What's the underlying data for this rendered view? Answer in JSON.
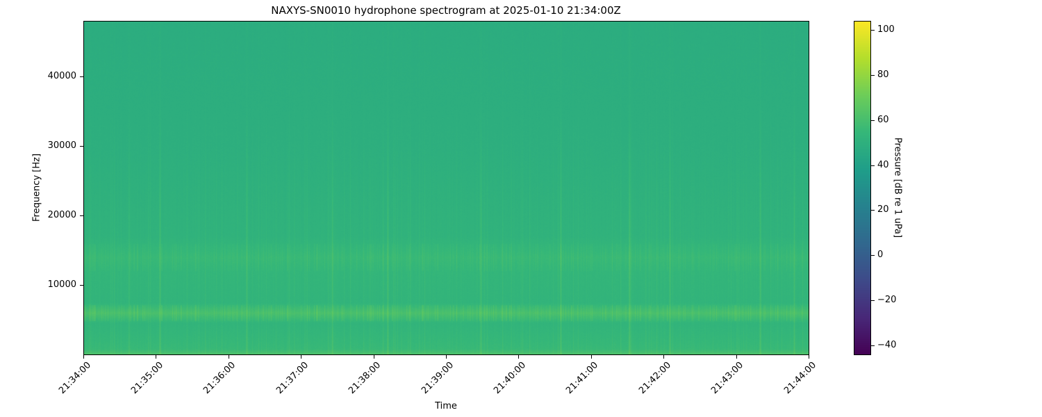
{
  "chart_data": {
    "type": "heatmap",
    "title": "NAXYS-SN0010 hydrophone spectrogram at 2025-01-10 21:34:00Z",
    "xlabel": "Time",
    "ylabel": "Frequency [Hz]",
    "colorbar_label": "Pressure [dB re 1 uPa]",
    "colormap": "viridis",
    "x_ticks": [
      "21:34:00",
      "21:35:00",
      "21:36:00",
      "21:37:00",
      "21:38:00",
      "21:39:00",
      "21:40:00",
      "21:41:00",
      "21:42:00",
      "21:43:00",
      "21:44:00"
    ],
    "xlim": [
      "21:34:00",
      "21:44:00"
    ],
    "y_ticks": [
      10000,
      20000,
      30000,
      40000
    ],
    "ylim": [
      0,
      48000
    ],
    "colorbar_ticks": [
      -40,
      -20,
      0,
      20,
      40,
      60,
      80,
      100
    ],
    "clim": [
      -44,
      104
    ],
    "grid": false,
    "background_level_db": 50,
    "frequency_profile": [
      {
        "freq_hz": 0,
        "level_db": 62
      },
      {
        "freq_hz": 800,
        "level_db": 55
      },
      {
        "freq_hz": 4500,
        "level_db": 52
      },
      {
        "freq_hz": 6000,
        "level_db": 60
      },
      {
        "freq_hz": 7500,
        "level_db": 52
      },
      {
        "freq_hz": 12000,
        "level_db": 53
      },
      {
        "freq_hz": 14000,
        "level_db": 55
      },
      {
        "freq_hz": 17000,
        "level_db": 51
      },
      {
        "freq_hz": 30000,
        "level_db": 49
      },
      {
        "freq_hz": 48000,
        "level_db": 48
      }
    ],
    "transient_times": [
      "21:35:03",
      "21:36:15",
      "21:37:26",
      "21:38:12",
      "21:39:29",
      "21:40:35",
      "21:41:32",
      "21:42:05",
      "21:43:20",
      "21:43:48"
    ]
  }
}
